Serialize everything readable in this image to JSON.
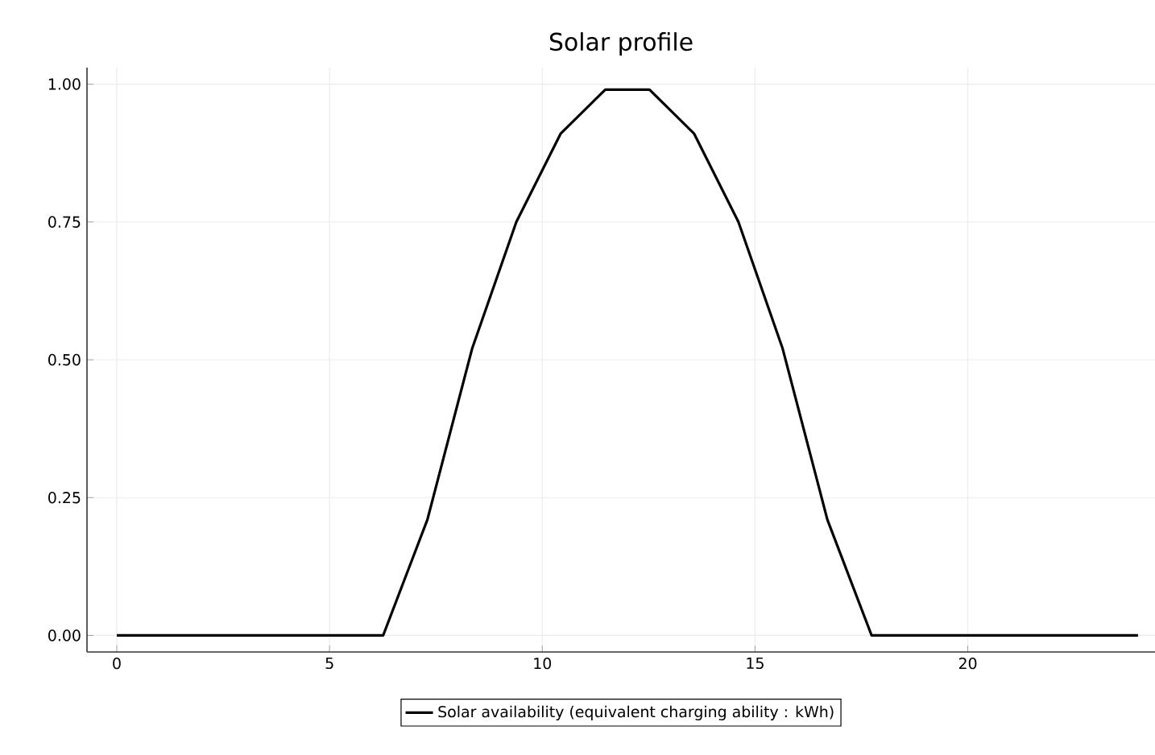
{
  "chart_data": {
    "type": "line",
    "title": "Solar profile",
    "x": [
      0,
      1.04,
      2.09,
      3.13,
      4.17,
      5.22,
      6.26,
      7.3,
      8.35,
      9.39,
      10.43,
      11.48,
      12.52,
      13.57,
      14.61,
      15.65,
      16.7,
      17.74,
      18.78,
      19.83,
      20.87,
      21.91,
      22.96,
      24
    ],
    "series": [
      {
        "name": "Solar availability (equivalent charging ability : kWh)",
        "color": "#000000",
        "values": [
          0,
          0,
          0,
          0,
          0,
          0,
          0,
          0.21,
          0.52,
          0.75,
          0.91,
          0.99,
          0.99,
          0.91,
          0.75,
          0.52,
          0.21,
          0,
          0,
          0,
          0,
          0,
          0,
          0
        ]
      }
    ],
    "xlim": [
      -0.7,
      24.4
    ],
    "ylim": [
      -0.03,
      1.03
    ],
    "xticks": [
      0,
      5,
      10,
      15,
      20
    ],
    "yticks": [
      {
        "value": 0,
        "label": "0.00"
      },
      {
        "value": 0.25,
        "label": "0.25"
      },
      {
        "value": 0.5,
        "label": "0.50"
      },
      {
        "value": 0.75,
        "label": "0.75"
      },
      {
        "value": 1,
        "label": "1.00"
      }
    ],
    "grid": true,
    "legend": "bottom",
    "marker": "none",
    "line_style": "solid"
  }
}
